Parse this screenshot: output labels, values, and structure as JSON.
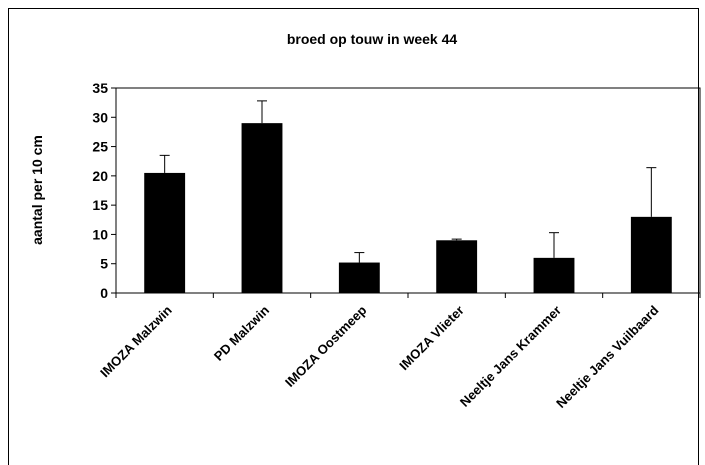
{
  "chart_data": {
    "type": "bar",
    "title": "broed op touw in week 44",
    "xlabel": "",
    "ylabel": "aantal per 10 cm",
    "categories": [
      "IMOZA Malzwin",
      "PD Malzwin",
      "IMOZA Oostmeep",
      "IMOZA Vlieter",
      "Neeltje Jans Krammer",
      "Neeltje Jans Vuilbaard"
    ],
    "values": [
      20.5,
      29.0,
      5.2,
      9.0,
      6.0,
      13.0
    ],
    "error_upper": [
      3.0,
      3.8,
      1.7,
      0.2,
      4.3,
      8.4
    ],
    "ylim": [
      0,
      35
    ],
    "yticks": [
      0,
      5,
      10,
      15,
      20,
      25,
      30,
      35
    ],
    "grid": false,
    "legend": "none",
    "colors": {
      "bar": "#000000",
      "axis": "#000000",
      "background": "#ffffff",
      "frame": "#000000"
    }
  }
}
